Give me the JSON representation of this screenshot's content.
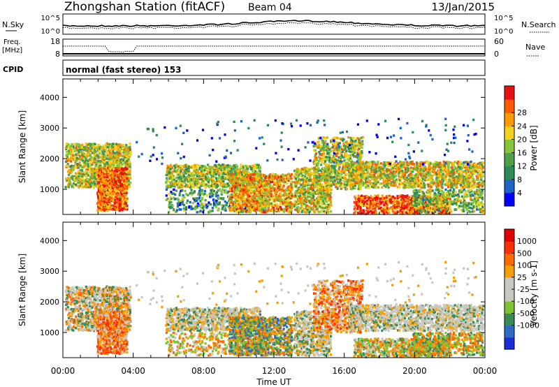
{
  "header": {
    "station": "Zhongshan Station (fitACF)",
    "beam": "Beam 04",
    "date": "13/Jan/2015"
  },
  "strip_panels": {
    "sky_label": "N.Sky",
    "sky_ticks": [
      "10^5",
      "10^0"
    ],
    "search_label": "N.Search",
    "freq_label": "Freq.",
    "freq_unit": "[MHz]",
    "freq_ticks": [
      "18",
      "8"
    ],
    "nave_label": "Nave",
    "nave_ticks": [
      "60",
      "0"
    ],
    "cpid_label": "CPID",
    "cpid_text": "normal (fast stereo) 153"
  },
  "colors": {
    "power": [
      "#0000ff",
      "#1e64c8",
      "#2e8b57",
      "#4ea04a",
      "#87c63a",
      "#f2d21d",
      "#ff9a00",
      "#ff5a00",
      "#e81010"
    ],
    "velocity": [
      "#1a2ed8",
      "#2f6bc4",
      "#3c8a58",
      "#7cc434",
      "#c8c8c0",
      "#c8c8c0",
      "#f5a000",
      "#ff6a00",
      "#ff2e00",
      "#e00000"
    ]
  },
  "chart_data": [
    {
      "type": "heatmap",
      "title": "",
      "xlabel": "",
      "ylabel": "Slant Range [km]",
      "x_ticks": [
        "00:00",
        "04:00",
        "08:00",
        "12:00",
        "16:00",
        "20:00",
        "00:00"
      ],
      "y_ticks": [
        "1000",
        "2000",
        "3000",
        "4000"
      ],
      "ylim": [
        180,
        4600
      ],
      "colorbar_label": "Power [dB]",
      "colorbar_ticks": [
        "4",
        "8",
        "12",
        "16",
        "20",
        "24",
        "28"
      ],
      "clim": [
        0,
        30
      ]
    },
    {
      "type": "heatmap",
      "title": "",
      "xlabel": "Time UT",
      "ylabel": "Slant Range [km]",
      "x_ticks": [
        "00:00",
        "04:00",
        "08:00",
        "12:00",
        "16:00",
        "20:00",
        "00:00"
      ],
      "y_ticks": [
        "1000",
        "2000",
        "3000",
        "4000"
      ],
      "ylim": [
        180,
        4600
      ],
      "colorbar_label": "Velocity [m s-1]",
      "colorbar_ticks": [
        "1000",
        "500",
        "100",
        "25",
        "-25",
        "-100",
        "-500",
        "-1000"
      ]
    }
  ]
}
